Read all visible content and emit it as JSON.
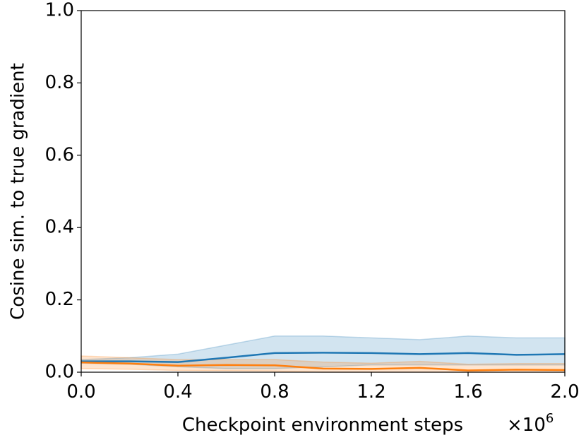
{
  "chart_data": {
    "type": "line",
    "xlabel": "Checkpoint environment steps",
    "x_offset_base": "×10",
    "x_offset_exponent": "6",
    "ylabel": "Cosine sim. to true gradient",
    "x": [
      0,
      0.2,
      0.4,
      0.6,
      0.8,
      1.0,
      1.2,
      1.4,
      1.6,
      1.8,
      2.0
    ],
    "series": [
      {
        "color": "#1f77b4",
        "values": [
          0.03,
          0.03,
          0.028,
          0.04,
          0.053,
          0.054,
          0.053,
          0.05,
          0.053,
          0.048,
          0.05
        ],
        "upper": [
          0.035,
          0.04,
          0.05,
          0.075,
          0.1,
          0.1,
          0.095,
          0.09,
          0.1,
          0.095,
          0.095
        ],
        "lower": [
          0.025,
          0.022,
          0.015,
          0.01,
          0.01,
          0.015,
          0.02,
          0.02,
          0.02,
          0.02,
          0.02
        ]
      },
      {
        "color": "#ff7f0e",
        "values": [
          0.027,
          0.024,
          0.018,
          0.02,
          0.019,
          0.01,
          0.009,
          0.012,
          0.005,
          0.007,
          0.006
        ],
        "upper": [
          0.045,
          0.04,
          0.035,
          0.035,
          0.035,
          0.028,
          0.025,
          0.03,
          0.022,
          0.024,
          0.024
        ],
        "lower": [
          0.01,
          0.008,
          0.005,
          0.004,
          0.003,
          0,
          0,
          0,
          0,
          0,
          0
        ]
      }
    ],
    "xlim": [
      0,
      2.0
    ],
    "xticks": [
      {
        "value": 0,
        "label": "0.0"
      },
      0.4,
      0.8,
      1.2,
      1.6,
      {
        "value": 2.0,
        "label": "2.0"
      }
    ],
    "ylim": [
      0,
      1.0
    ],
    "yticks": [
      {
        "value": 0,
        "label": "0.0"
      },
      0.2,
      0.4,
      0.6,
      0.8,
      {
        "value": 1.0,
        "label": "1.0"
      }
    ],
    "grid": false
  }
}
